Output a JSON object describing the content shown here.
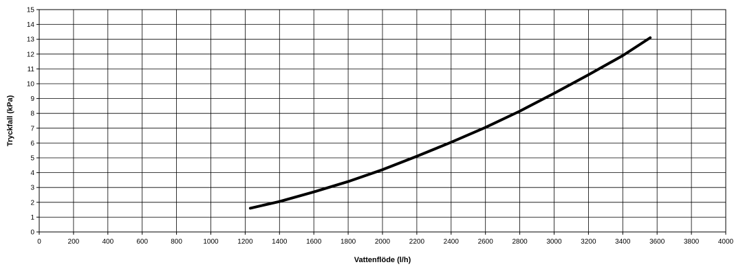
{
  "chart_data": {
    "type": "line",
    "title": "",
    "xlabel": "Vattenflöde (l/h)",
    "ylabel": "Tryckfall (kPa)",
    "xlim": [
      0,
      4000
    ],
    "ylim": [
      0,
      15
    ],
    "x_ticks": [
      "0",
      "200",
      "400",
      "600",
      "800",
      "1000",
      "1200",
      "1400",
      "1600",
      "1800",
      "2000",
      "2200",
      "2400",
      "2600",
      "2800",
      "3000",
      "3200",
      "3400",
      "3600",
      "3800",
      "4000"
    ],
    "y_ticks": [
      "0",
      "1",
      "2",
      "3",
      "4",
      "5",
      "6",
      "7",
      "8",
      "9",
      "10",
      "11",
      "12",
      "13",
      "14",
      "15"
    ],
    "grid": true,
    "legend": "none",
    "series": [
      {
        "color": "#000000",
        "x": [
          1230,
          1400,
          1600,
          1800,
          2000,
          2200,
          2400,
          2600,
          2800,
          3000,
          3200,
          3400,
          3560
        ],
        "y": [
          1.6,
          2.05,
          2.7,
          3.4,
          4.2,
          5.1,
          6.05,
          7.05,
          8.15,
          9.35,
          10.6,
          11.9,
          13.1
        ]
      }
    ]
  }
}
